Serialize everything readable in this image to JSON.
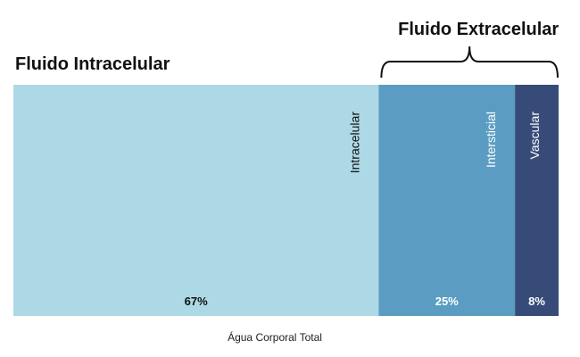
{
  "chart_data": {
    "type": "bar",
    "orientation": "horizontal-stacked",
    "xlabel": "Água Corporal Total",
    "ylabel": "",
    "grid": false,
    "legend": "none",
    "segments": [
      {
        "name": "Intracelular",
        "value": 67,
        "value_label": "67%",
        "color": "#add8e6",
        "text_color": "#111111"
      },
      {
        "name": "Intersticial",
        "value": 25,
        "value_label": "25%",
        "color": "#5b9dc2",
        "text_color": "#ffffff"
      },
      {
        "name": "Vascular",
        "value": 8,
        "value_label": "8%",
        "color": "#374b78",
        "text_color": "#ffffff"
      }
    ],
    "groups": [
      {
        "label": "Fluido Intracelular",
        "segments": [
          "Intracelular"
        ],
        "bracket": false
      },
      {
        "label": "Fluido Extracelular",
        "segments": [
          "Intersticial",
          "Vascular"
        ],
        "bracket": true
      }
    ]
  }
}
